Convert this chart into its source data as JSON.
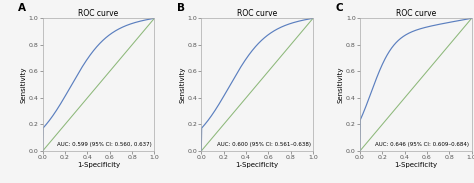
{
  "panels": [
    {
      "label": "A",
      "title": "ROC curve",
      "auc_text": "AUC: 0.599 (95% CI: 0.560, 0.637)",
      "curve_power": 0.72,
      "inflection": 0.28,
      "inflection_tpr": 0.52
    },
    {
      "label": "B",
      "title": "ROC curve",
      "auc_text": "AUC: 0.600 (95% CI: 0.561–0.638)",
      "curve_power": 0.72,
      "inflection": 0.28,
      "inflection_tpr": 0.52
    },
    {
      "label": "C",
      "title": "ROC curve",
      "auc_text": "AUC: 0.646 (95% CI: 0.609–0.684)",
      "curve_power": 0.5,
      "inflection": 0.12,
      "inflection_tpr": 0.75
    }
  ],
  "roc_color": "#5B7FBF",
  "diag_color": "#8DB87A",
  "background_color": "#f5f5f5",
  "plot_bg": "#f5f5f5",
  "xlabel": "1-Specificity",
  "ylabel": "Sensitivity",
  "tick_labels": [
    "0.0",
    "0.2",
    "0.4",
    "0.6",
    "0.8",
    "1.0"
  ],
  "tick_values": [
    0.0,
    0.2,
    0.4,
    0.6,
    0.8,
    1.0
  ],
  "title_fontsize": 5.5,
  "label_fontsize": 5.0,
  "tick_fontsize": 4.5,
  "auc_fontsize": 4.0,
  "panel_label_fontsize": 7.5
}
